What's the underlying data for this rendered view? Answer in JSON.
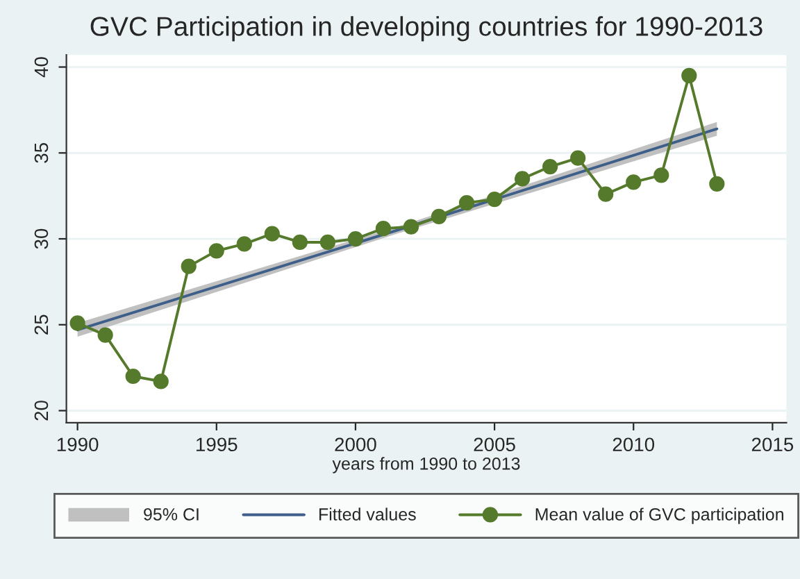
{
  "chart_data": {
    "type": "line",
    "title": "GVC Participation in developing countries for 1990-2013",
    "xlabel": "years from 1990 to 2013",
    "annotations": [
      "95% CI"
    ],
    "xlim": [
      1989.6,
      2015.5
    ],
    "xticks": [
      1990,
      1995,
      2000,
      2005,
      2010,
      2015
    ],
    "ylim": [
      19.3,
      40.7
    ],
    "yticks": [
      20,
      25,
      30,
      35,
      40
    ],
    "grid": "y",
    "legend": "bottom",
    "series": [
      {
        "name": "Fitted values",
        "type": "line",
        "color": "#3e5f8a",
        "marker": "none",
        "x": [
          1990,
          2001.5,
          2013
        ],
        "values": [
          24.7,
          30.5,
          36.4
        ],
        "lower": [
          24.3,
          30.3,
          36.0
        ],
        "upper": [
          25.1,
          30.7,
          36.8
        ]
      },
      {
        "name": "Mean value of GVC participation",
        "color": "#557a2b",
        "marker": "circle",
        "x": [
          1990,
          1991,
          1992,
          1993,
          1994,
          1995,
          1996,
          1997,
          1998,
          1999,
          2000,
          2001,
          2002,
          2003,
          2004,
          2005,
          2006,
          2007,
          2008,
          2009,
          2010,
          2011,
          2012,
          2013
        ],
        "values": [
          25.1,
          24.4,
          22.0,
          21.7,
          28.4,
          29.3,
          29.7,
          30.3,
          29.8,
          29.8,
          30.0,
          30.6,
          30.7,
          31.3,
          32.1,
          32.3,
          33.5,
          34.2,
          34.7,
          32.6,
          33.3,
          33.7,
          39.5,
          33.2
        ]
      }
    ]
  }
}
